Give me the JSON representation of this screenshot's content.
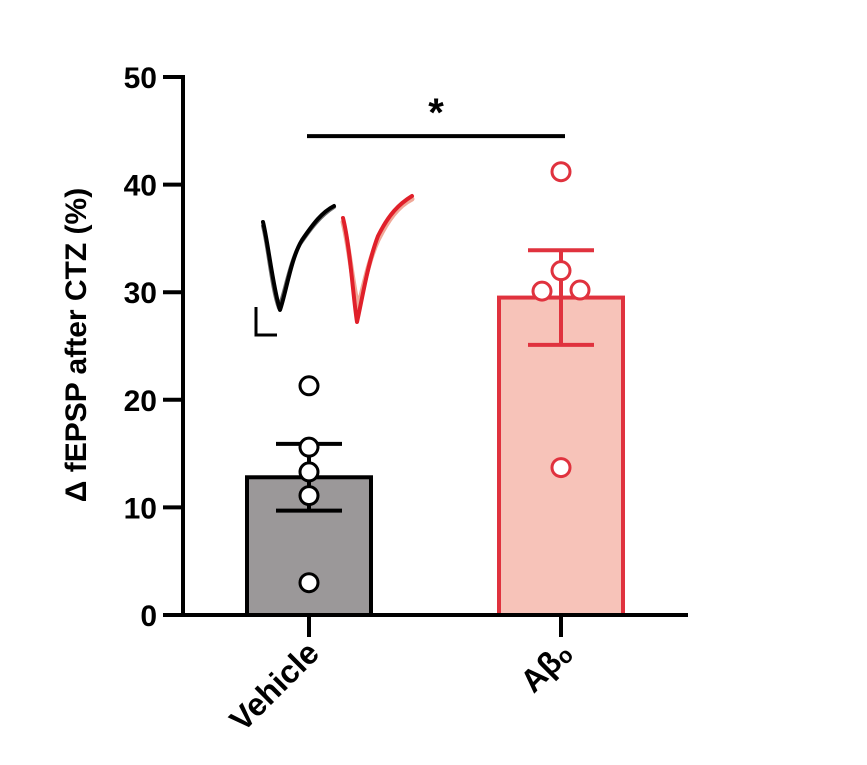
{
  "chart_data": {
    "type": "bar",
    "ylabel": "Δ fEPSP after CTZ (%)",
    "ylim": [
      0,
      50
    ],
    "yticks": [
      0,
      10,
      20,
      30,
      40,
      50
    ],
    "categories": [
      "Vehicle",
      "Aβₒ"
    ],
    "bars": [
      {
        "category": "Vehicle",
        "mean": 12.8,
        "sem": 3.1,
        "points": [
          21.3,
          15.6,
          13.3,
          11.1,
          3.0
        ],
        "fill": "#9b9899",
        "stroke": "#000000",
        "point_stroke": "#000000"
      },
      {
        "category": "Aβₒ",
        "mean": 29.5,
        "sem": 4.4,
        "points": [
          41.2,
          32.0,
          30.1,
          30.2,
          13.7
        ],
        "fill": "#f7c3b9",
        "stroke": "#e0323e",
        "point_stroke": "#e0323e"
      }
    ],
    "significance": {
      "label": "*",
      "pair": [
        "Vehicle",
        "Aβₒ"
      ],
      "y": 44.5
    },
    "traces": [
      {
        "group": "Vehicle",
        "colors": [
          "#6b6b6b",
          "#000000"
        ]
      },
      {
        "group": "Aβₒ",
        "colors": [
          "#f0a898",
          "#e0202a"
        ]
      }
    ]
  }
}
